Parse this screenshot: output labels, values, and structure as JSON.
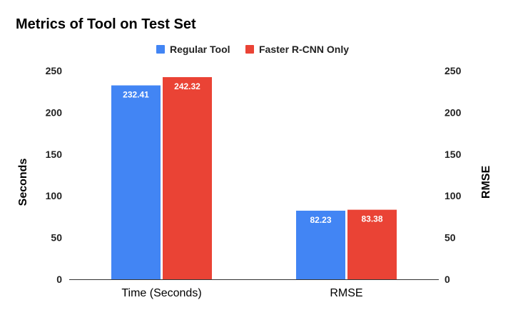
{
  "chart_data": {
    "type": "bar",
    "title": "Metrics of Tool on Test Set",
    "categories": [
      "Time (Seconds)",
      "RMSE"
    ],
    "series": [
      {
        "name": "Regular Tool",
        "values": [
          232.41,
          82.23
        ],
        "color": "#4285f4"
      },
      {
        "name": "Faster R-CNN Only",
        "values": [
          242.32,
          83.38
        ],
        "color": "#ea4335"
      }
    ],
    "ylabel": "Seconds",
    "y2label": "RMSE",
    "ylim": [
      0,
      250
    ],
    "yticks": [
      0,
      50,
      100,
      150,
      200,
      250
    ],
    "legend_position": "top",
    "grid": false
  }
}
